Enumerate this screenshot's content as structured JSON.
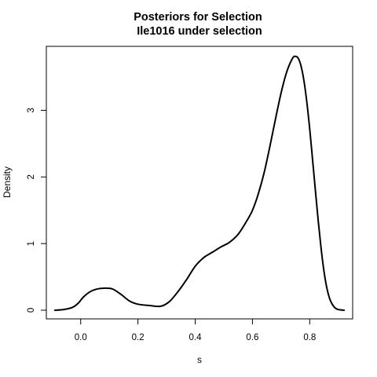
{
  "chart_data": {
    "type": "line",
    "title": "Posteriors for Selection",
    "subtitle": "Ile1016 under selection",
    "xlabel": "s",
    "ylabel": "Density",
    "xlim": [
      -0.12,
      0.95
    ],
    "ylim": [
      -0.13,
      3.96
    ],
    "x_ticks": [
      "0.0",
      "0.2",
      "0.4",
      "0.6",
      "0.8"
    ],
    "y_ticks": [
      "0",
      "1",
      "2",
      "3"
    ],
    "grid": false,
    "series": [
      {
        "color": "#000000",
        "x": [
          -0.09,
          -0.06,
          -0.03,
          -0.01,
          0.01,
          0.03,
          0.05,
          0.08,
          0.11,
          0.14,
          0.17,
          0.2,
          0.24,
          0.28,
          0.31,
          0.34,
          0.37,
          0.4,
          0.43,
          0.46,
          0.49,
          0.52,
          0.55,
          0.58,
          0.6,
          0.62,
          0.64,
          0.66,
          0.68,
          0.7,
          0.72,
          0.74,
          0.75,
          0.76,
          0.77,
          0.78,
          0.79,
          0.8,
          0.81,
          0.82,
          0.83,
          0.84,
          0.85,
          0.86,
          0.87,
          0.88,
          0.89,
          0.9,
          0.92
        ],
        "y": [
          0.0,
          0.01,
          0.04,
          0.1,
          0.2,
          0.27,
          0.31,
          0.33,
          0.32,
          0.24,
          0.14,
          0.09,
          0.07,
          0.06,
          0.13,
          0.28,
          0.46,
          0.66,
          0.79,
          0.87,
          0.95,
          1.02,
          1.14,
          1.34,
          1.5,
          1.74,
          2.05,
          2.44,
          2.86,
          3.26,
          3.58,
          3.78,
          3.81,
          3.78,
          3.66,
          3.44,
          3.12,
          2.72,
          2.26,
          1.79,
          1.33,
          0.92,
          0.58,
          0.33,
          0.17,
          0.08,
          0.03,
          0.01,
          0.0
        ]
      }
    ]
  }
}
